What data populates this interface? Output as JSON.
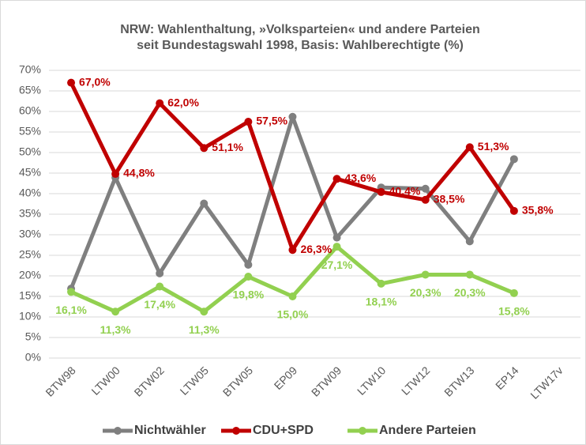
{
  "chart_data": {
    "type": "line",
    "title": "NRW: Wahlenthaltung,  »Volksparteien«  und andere Parteien",
    "subtitle": "seit Bundestagswahl 1998, Basis: Wahlberechtigte  (%)",
    "categories": [
      "BTW98",
      "LTW00",
      "BTW02",
      "LTW05",
      "BTW05",
      "EP09",
      "BTW09",
      "LTW10",
      "LTW12",
      "BTW13",
      "EP14",
      "LTW17v"
    ],
    "series": [
      {
        "name": "Nichtwähler",
        "color": "#7f7f7f",
        "values": [
          16.9,
          43.9,
          20.6,
          37.6,
          22.7,
          58.7,
          29.3,
          41.5,
          41.2,
          28.4,
          48.4,
          null
        ]
      },
      {
        "name": "CDU+SPD",
        "color": "#c00000",
        "values": [
          67.0,
          44.8,
          62.0,
          51.1,
          57.5,
          26.3,
          43.6,
          40.4,
          38.5,
          51.3,
          35.8,
          null
        ],
        "value_labels": [
          "67,0%",
          "44,8%",
          "62,0%",
          "51,1%",
          "57,5%",
          "26,3%",
          "43,6%",
          "40,4%",
          "38,5%",
          "51,3%",
          "35,8%",
          null
        ]
      },
      {
        "name": "Andere Parteien",
        "color": "#92d050",
        "values": [
          16.1,
          11.3,
          17.4,
          11.3,
          19.8,
          15.0,
          27.1,
          18.1,
          20.3,
          20.3,
          15.8,
          null
        ],
        "value_labels": [
          "16,1%",
          "11,3%",
          "17,4%",
          "11,3%",
          "19,8%",
          "15,0%",
          "27,1%",
          "18,1%",
          "20,3%",
          "20,3%",
          "15,8%",
          null
        ]
      }
    ],
    "ylim": [
      0,
      70
    ],
    "yticks": [
      {
        "value": 0,
        "label": "0%"
      },
      {
        "value": 5,
        "label": "5%"
      },
      {
        "value": 10,
        "label": "10%"
      },
      {
        "value": 15,
        "label": "15%"
      },
      {
        "value": 20,
        "label": "20%"
      },
      {
        "value": 25,
        "label": "25%"
      },
      {
        "value": 30,
        "label": "30%"
      },
      {
        "value": 35,
        "label": "35%"
      },
      {
        "value": 40,
        "label": "40%"
      },
      {
        "value": 45,
        "label": "45%"
      },
      {
        "value": 50,
        "label": "50%"
      },
      {
        "value": 55,
        "label": "55%"
      },
      {
        "value": 60,
        "label": "60%"
      },
      {
        "value": 65,
        "label": "65%"
      },
      {
        "value": 70,
        "label": "70%"
      }
    ],
    "grid": true,
    "legend": "bottom"
  }
}
